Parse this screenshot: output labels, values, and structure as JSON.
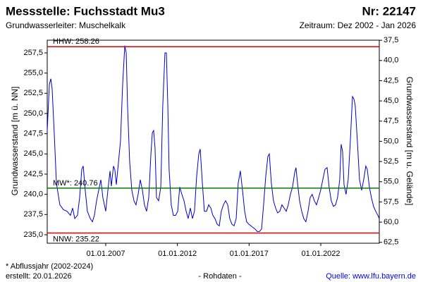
{
  "chart_data": {
    "type": "line",
    "title": "Messstelle: Fuchsstadt Mu3",
    "number": "Nr: 22147",
    "subtitle": "Grundwasserleiter: Muschelkalk",
    "period": "Zeitraum: Dez 2002 - Jan 2026",
    "ylabel": "Grundwasserstand [m ü. NN]",
    "y2label": "Grundwasserstand [m u. Gelände]",
    "footnote": "* Abflussjahr (2002-2024)",
    "created": "erstellt:  20.01.2026",
    "data_note": "- Rohdaten -",
    "source": "Quelle: www.lfu.bayern.de",
    "color": "#0000cc",
    "xlim": [
      2002.92,
      2026.08
    ],
    "xticks": [
      {
        "value": 2007,
        "label": "01.01.2007"
      },
      {
        "value": 2012,
        "label": "01.01.2012"
      },
      {
        "value": 2017,
        "label": "01.01.2017"
      },
      {
        "value": 2022,
        "label": "01.01.2022"
      }
    ],
    "ylim": [
      233.95,
      259.07
    ],
    "yticks": [
      {
        "value": 235,
        "label": "235,0"
      },
      {
        "value": 237.5,
        "label": "237,5"
      },
      {
        "value": 240,
        "label": "240,0"
      },
      {
        "value": 242.5,
        "label": "242,5"
      },
      {
        "value": 245,
        "label": "245,0"
      },
      {
        "value": 247.5,
        "label": "247,5"
      },
      {
        "value": 250,
        "label": "250,0"
      },
      {
        "value": 252.5,
        "label": "252,5"
      },
      {
        "value": 255,
        "label": "255,0"
      },
      {
        "value": 257.5,
        "label": "257,5"
      }
    ],
    "y2lim": [
      62.61,
      37.49
    ],
    "y2ticks": [
      {
        "value": 37.5,
        "label": "37,5"
      },
      {
        "value": 40,
        "label": "40,0"
      },
      {
        "value": 42.5,
        "label": "42,5"
      },
      {
        "value": 45,
        "label": "45,0"
      },
      {
        "value": 47.5,
        "label": "47,5"
      },
      {
        "value": 50,
        "label": "50,0"
      },
      {
        "value": 52.5,
        "label": "52,5"
      },
      {
        "value": 55,
        "label": "55,0"
      },
      {
        "value": 57.5,
        "label": "57,5"
      },
      {
        "value": 60,
        "label": "60,0"
      },
      {
        "value": 62.5,
        "label": "62,5"
      }
    ],
    "reference_lines": [
      {
        "label": "HHW: 258.26",
        "value": 258.26,
        "color": "#e00000"
      },
      {
        "label": "MW*: 240.76",
        "value": 240.76,
        "color": "#008000"
      },
      {
        "label": "NNW: 235.22",
        "value": 235.22,
        "color": "#e00000"
      }
    ],
    "x": [
      2002.92,
      2003.07,
      2003.17,
      2003.26,
      2003.41,
      2003.56,
      2003.8,
      2004.05,
      2004.3,
      2004.54,
      2004.69,
      2004.84,
      2005.03,
      2005.18,
      2005.33,
      2005.43,
      2005.57,
      2005.72,
      2005.92,
      2006.07,
      2006.21,
      2006.36,
      2006.51,
      2006.66,
      2006.8,
      2007.0,
      2007.15,
      2007.3,
      2007.39,
      2007.54,
      2007.64,
      2007.74,
      2007.89,
      2008.03,
      2008.18,
      2008.33,
      2008.43,
      2008.52,
      2008.67,
      2008.82,
      2008.97,
      2009.11,
      2009.26,
      2009.41,
      2009.56,
      2009.7,
      2009.85,
      2010.0,
      2010.15,
      2010.25,
      2010.34,
      2010.44,
      2010.54,
      2010.69,
      2010.84,
      2010.98,
      2011.13,
      2011.23,
      2011.33,
      2011.42,
      2011.57,
      2011.72,
      2011.87,
      2012.02,
      2012.16,
      2012.31,
      2012.46,
      2012.61,
      2012.75,
      2012.9,
      2013.05,
      2013.19,
      2013.34,
      2013.49,
      2013.59,
      2013.74,
      2013.88,
      2014.03,
      2014.18,
      2014.33,
      2014.47,
      2014.62,
      2014.77,
      2014.92,
      2015.06,
      2015.21,
      2015.36,
      2015.51,
      2015.65,
      2015.8,
      2015.95,
      2016.1,
      2016.24,
      2016.39,
      2016.54,
      2016.69,
      2016.83,
      2016.98,
      2017.13,
      2017.27,
      2017.42,
      2017.57,
      2017.72,
      2017.87,
      2018.01,
      2018.16,
      2018.31,
      2018.41,
      2018.55,
      2018.7,
      2018.85,
      2018.99,
      2019.14,
      2019.29,
      2019.44,
      2019.59,
      2019.73,
      2019.88,
      2020.03,
      2020.18,
      2020.27,
      2020.37,
      2020.52,
      2020.67,
      2020.81,
      2020.96,
      2021.11,
      2021.26,
      2021.4,
      2021.55,
      2021.7,
      2021.85,
      2021.99,
      2022.14,
      2022.29,
      2022.44,
      2022.58,
      2022.73,
      2022.88,
      2023.03,
      2023.17,
      2023.32,
      2023.42,
      2023.52,
      2023.62,
      2023.76,
      2023.91,
      2024.06,
      2024.21,
      2024.31,
      2024.4,
      2024.55,
      2024.7,
      2024.85,
      2024.99,
      2025.14,
      2025.24,
      2025.39,
      2025.53,
      2025.68,
      2025.83,
      2025.98,
      2026.08
    ],
    "values": [
      247.9,
      253.6,
      254.3,
      253.1,
      247.5,
      241.4,
      238.7,
      238.1,
      237.9,
      237.4,
      238.3,
      237.0,
      237.4,
      239.6,
      243.1,
      243.5,
      240.5,
      237.9,
      237.0,
      236.6,
      237.4,
      239.2,
      240.5,
      241.8,
      239.6,
      237.9,
      240.5,
      242.9,
      241.0,
      243.5,
      243.0,
      241.2,
      244.0,
      246.6,
      253.6,
      258.4,
      257.5,
      251.0,
      244.0,
      240.5,
      239.2,
      238.7,
      240.0,
      241.8,
      240.5,
      238.7,
      237.9,
      239.6,
      244.9,
      247.6,
      247.9,
      245.7,
      239.6,
      239.2,
      240.9,
      251.0,
      257.5,
      257.5,
      251.0,
      243.1,
      238.7,
      237.4,
      237.4,
      237.9,
      240.9,
      240.0,
      239.2,
      237.9,
      237.0,
      238.3,
      237.0,
      237.9,
      242.2,
      245.0,
      245.6,
      241.4,
      237.9,
      237.9,
      238.7,
      238.3,
      237.4,
      237.0,
      236.3,
      236.1,
      237.9,
      238.7,
      239.2,
      238.7,
      237.0,
      236.3,
      236.1,
      237.0,
      241.4,
      242.9,
      240.5,
      237.9,
      236.6,
      236.3,
      236.1,
      235.9,
      235.7,
      235.4,
      235.4,
      235.7,
      238.7,
      242.2,
      244.7,
      245.0,
      241.4,
      239.2,
      238.3,
      237.7,
      237.9,
      238.7,
      238.3,
      237.9,
      238.7,
      240.0,
      240.9,
      242.7,
      243.3,
      241.5,
      239.2,
      237.9,
      237.0,
      236.6,
      237.9,
      239.6,
      240.0,
      239.2,
      238.7,
      239.6,
      240.5,
      241.8,
      243.1,
      243.3,
      240.9,
      239.2,
      238.5,
      238.7,
      239.6,
      241.8,
      246.2,
      245.3,
      241.2,
      240.0,
      241.8,
      246.6,
      252.1,
      251.8,
      251.0,
      246.6,
      241.8,
      240.5,
      241.8,
      243.5,
      243.1,
      240.9,
      239.6,
      238.5,
      237.9,
      237.4,
      237.0
    ]
  }
}
